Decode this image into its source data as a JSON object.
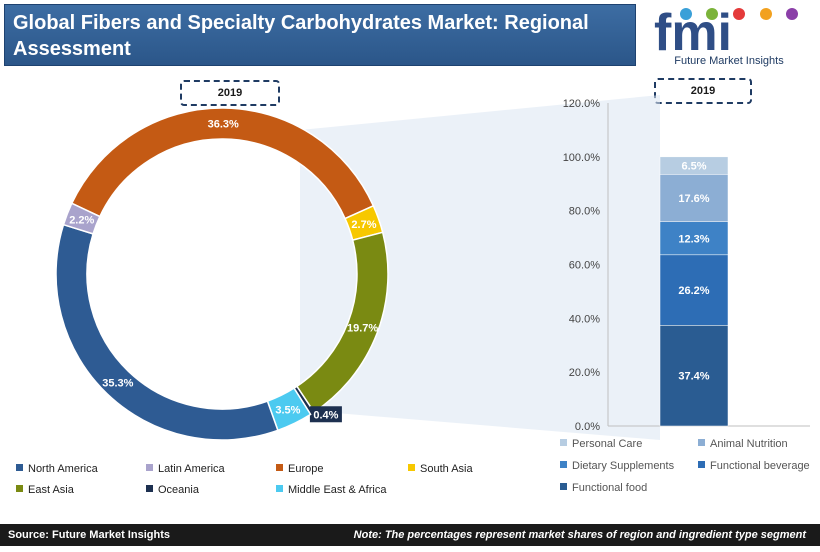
{
  "header": {
    "title": "Global Fibers and Specialty Carbohydrates Market: Regional Assessment"
  },
  "logo": {
    "text": "fmi",
    "caption": "Future Market Insights"
  },
  "colors": {
    "north_america": "#2e5b93",
    "latin_america": "#a9a3cc",
    "europe": "#c45a14",
    "south_asia": "#f7c800",
    "east_asia": "#7a8a12",
    "oceania": "#1d3050",
    "middle_east_africa": "#4ccaf0",
    "personal_care": "#b7cde2",
    "animal_nutrition": "#8caed4",
    "dietary_supplements": "#3e82c6",
    "functional_beverage": "#2d6db5",
    "functional_food": "#2a5c92"
  },
  "chart_data": [
    {
      "type": "pie",
      "subtype": "donut",
      "title": "2019",
      "slices": [
        {
          "name": "Europe",
          "value": 36.3,
          "label": "36.3%",
          "color_key": "europe"
        },
        {
          "name": "South Asia",
          "value": 2.7,
          "label": "2.7%",
          "color_key": "south_asia"
        },
        {
          "name": "East Asia",
          "value": 19.7,
          "label": "19.7%",
          "color_key": "east_asia"
        },
        {
          "name": "Oceania",
          "value": 0.4,
          "label": "0.4%",
          "color_key": "oceania"
        },
        {
          "name": "Middle East & Africa",
          "value": 3.5,
          "label": "3.5%",
          "color_key": "middle_east_africa"
        },
        {
          "name": "North America",
          "value": 35.3,
          "label": "35.3%",
          "color_key": "north_america"
        },
        {
          "name": "Latin America",
          "value": 2.2,
          "label": "2.2%",
          "color_key": "latin_america"
        }
      ],
      "legend": [
        {
          "name": "North America",
          "color_key": "north_america"
        },
        {
          "name": "Latin America",
          "color_key": "latin_america"
        },
        {
          "name": "Europe",
          "color_key": "europe"
        },
        {
          "name": "South Asia",
          "color_key": "south_asia"
        },
        {
          "name": "East Asia",
          "color_key": "east_asia"
        },
        {
          "name": "Oceania",
          "color_key": "oceania"
        },
        {
          "name": "Middle East & Africa",
          "color_key": "middle_east_africa"
        }
      ]
    },
    {
      "type": "bar",
      "subtype": "stacked",
      "title": "2019",
      "categories": [
        "2019"
      ],
      "ylim": [
        0,
        120
      ],
      "yticks": [
        "0.0%",
        "20.0%",
        "40.0%",
        "60.0%",
        "80.0%",
        "100.0%",
        "120.0%"
      ],
      "series": [
        {
          "name": "Functional food",
          "values": [
            37.4
          ],
          "label": "37.4%",
          "color_key": "functional_food"
        },
        {
          "name": "Functional beverage",
          "values": [
            26.2
          ],
          "label": "26.2%",
          "color_key": "functional_beverage"
        },
        {
          "name": "Dietary Supplements",
          "values": [
            12.3
          ],
          "label": "12.3%",
          "color_key": "dietary_supplements"
        },
        {
          "name": "Animal Nutrition",
          "values": [
            17.6
          ],
          "label": "17.6%",
          "color_key": "animal_nutrition"
        },
        {
          "name": "Personal Care",
          "values": [
            6.5
          ],
          "label": "6.5%",
          "color_key": "personal_care"
        }
      ],
      "legend": [
        {
          "name": "Personal Care",
          "color_key": "personal_care"
        },
        {
          "name": "Animal Nutrition",
          "color_key": "animal_nutrition"
        },
        {
          "name": "Dietary Supplements",
          "color_key": "dietary_supplements"
        },
        {
          "name": "Functional beverage",
          "color_key": "functional_beverage"
        },
        {
          "name": "Functional food",
          "color_key": "functional_food"
        }
      ]
    }
  ],
  "footer": {
    "source": "Source: Future Market Insights",
    "note": "Note: The percentages represent market shares of region and ingredient type segment"
  }
}
